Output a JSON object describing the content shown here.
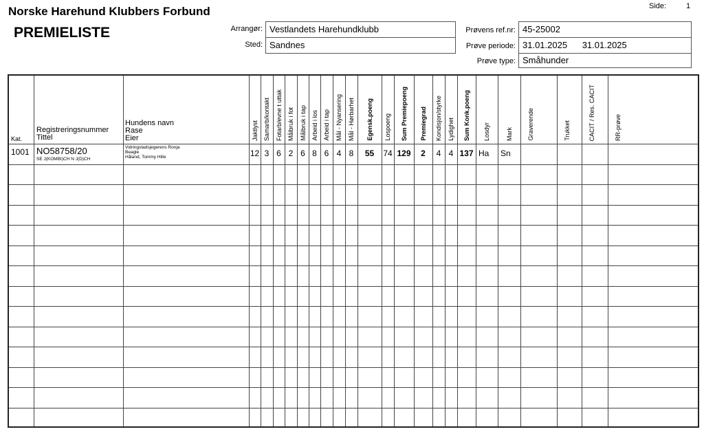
{
  "header": {
    "organization": "Norske Harehund Klubbers Forbund",
    "title": "PREMIELISTE",
    "page_label": "Side:",
    "page_value": "1",
    "arranger_label": "Arrangør:",
    "arranger_value": "Vestlandets Harehundklubb",
    "place_label": "Sted:",
    "place_value": "Sandnes",
    "ref_label": "Prøvens ref.nr:",
    "ref_value": "45-25002",
    "period_label": "Prøve periode:",
    "period_from": "31.01.2025",
    "period_to": "31.01.2025",
    "type_label": "Prøve type:",
    "type_value": "Småhunder"
  },
  "table": {
    "left_headers": {
      "kat": "Kat.",
      "reg": [
        "Registreringsnummer",
        "Tittel"
      ],
      "dog": [
        "Hundens navn",
        "Rase",
        "Eier"
      ]
    },
    "score_columns": [
      {
        "label": "Jaktlyst",
        "bold": false
      },
      {
        "label": "Samarb/kontakt",
        "bold": false
      },
      {
        "label": "Fotarb/evne t uttak",
        "bold": false
      },
      {
        "label": "Målbruk i fot",
        "bold": false
      },
      {
        "label": "Målbruk i tap",
        "bold": false
      },
      {
        "label": "Arbeid i los",
        "bold": false
      },
      {
        "label": "Arbeid i tap",
        "bold": false
      },
      {
        "label": "Mål - Nyansering",
        "bold": false
      },
      {
        "label": "Mål - Hørbarhet",
        "bold": false
      },
      {
        "label": "Egensk.poeng",
        "bold": true
      },
      {
        "label": "Lospoeng",
        "bold": false
      },
      {
        "label": "Sum Premiepoeng",
        "bold": true
      },
      {
        "label": "Premiegrad",
        "bold": true
      },
      {
        "label": "Kondisjon/styrke",
        "bold": false
      },
      {
        "label": "Lydighet",
        "bold": false
      },
      {
        "label": "Sum Konk.poeng",
        "bold": true
      },
      {
        "label": "Losdyr",
        "bold": false
      },
      {
        "label": "Mark",
        "bold": false
      },
      {
        "label": "Graverende",
        "bold": false
      },
      {
        "label": "Trukket",
        "bold": false
      },
      {
        "label": "CACIT / Res. CACIT",
        "bold": false
      },
      {
        "label": "RR-prøve",
        "bold": false
      }
    ],
    "rows": [
      {
        "kat": "1001",
        "reg": "NO58758/20",
        "title": "SE J(KOMBI)CH N J(D)CH",
        "dog_name": "Vidringstadsjegerens Ronja",
        "breed": "Beagle",
        "owner": "Håland, Tommy Hille",
        "scores": [
          "12",
          "3",
          "6",
          "2",
          "6",
          "8",
          "6",
          "4",
          "8",
          "55",
          "74",
          "129",
          "2",
          "4",
          "4",
          "137",
          "Ha",
          "Sn",
          "",
          "",
          "",
          ""
        ]
      }
    ],
    "total_rows": 14
  }
}
